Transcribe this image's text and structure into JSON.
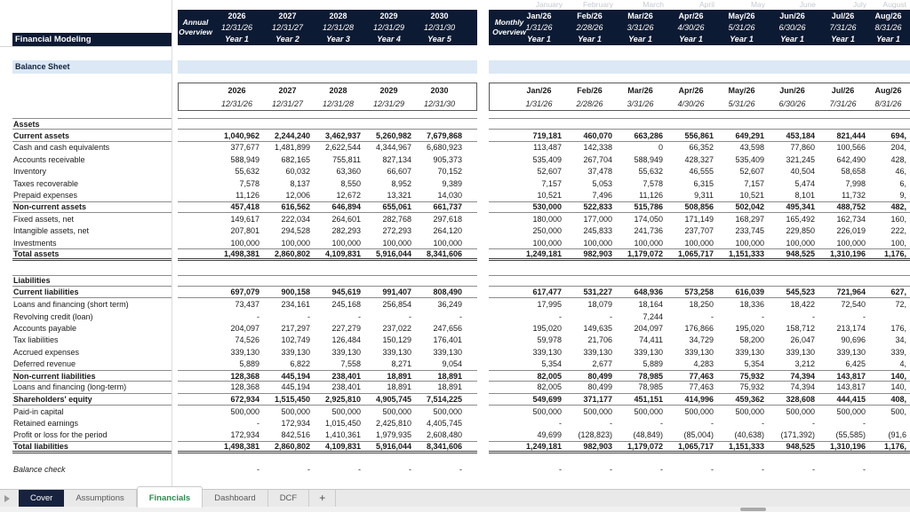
{
  "left": {
    "app_title": "Financial Modeling",
    "section_title": "Balance Sheet"
  },
  "colors": {
    "header_navy": "#0d1a33",
    "section_band_blue": "#dce8f5",
    "active_tab_green": "#2e8b4f",
    "cover_tab_navy": "#17223e"
  },
  "annual": {
    "band_label_line1": "Annual",
    "band_label_line2": "Overview",
    "years": [
      "2026",
      "2027",
      "2028",
      "2029",
      "2030"
    ],
    "dates": [
      "12/31/26",
      "12/31/27",
      "12/31/28",
      "12/31/29",
      "12/31/30"
    ],
    "year_labels": [
      "Year 1",
      "Year 2",
      "Year 3",
      "Year 4",
      "Year 5"
    ]
  },
  "monthly": {
    "band_label_line1": "Monthly",
    "band_label_line2": "Overview",
    "ghost_months": [
      "January",
      "February",
      "March",
      "April",
      "May",
      "June",
      "July",
      "August"
    ],
    "months": [
      "Jan/26",
      "Feb/26",
      "Mar/26",
      "Apr/26",
      "May/26",
      "Jun/26",
      "Jul/26",
      "Aug/26"
    ],
    "dates": [
      "1/31/26",
      "2/28/26",
      "3/31/26",
      "4/30/26",
      "5/31/26",
      "6/30/26",
      "7/31/26",
      "8/31/26"
    ],
    "year_labels": [
      "Year 1",
      "Year 1",
      "Year 1",
      "Year 1",
      "Year 1",
      "Year 1",
      "Year 1",
      "Year 1"
    ]
  },
  "rows": [
    {
      "label": "Assets",
      "b": true,
      "bt": true,
      "bb": "thin",
      "a": [
        "",
        "",
        "",
        "",
        ""
      ],
      "m": [
        "",
        "",
        "",
        "",
        "",
        "",
        "",
        ""
      ]
    },
    {
      "label": "Current assets",
      "b": true,
      "bb": "thin",
      "a": [
        "1,040,962",
        "2,244,240",
        "3,462,937",
        "5,260,982",
        "7,679,868"
      ],
      "m": [
        "719,181",
        "460,070",
        "663,286",
        "556,861",
        "649,291",
        "453,184",
        "821,444",
        "694,"
      ]
    },
    {
      "label": "Cash and cash equivalents",
      "a": [
        "377,677",
        "1,481,899",
        "2,622,544",
        "4,344,967",
        "6,680,923"
      ],
      "m": [
        "113,487",
        "142,338",
        "0",
        "66,352",
        "43,598",
        "77,860",
        "100,566",
        "204,"
      ]
    },
    {
      "label": "Accounts receivable",
      "a": [
        "588,949",
        "682,165",
        "755,811",
        "827,134",
        "905,373"
      ],
      "m": [
        "535,409",
        "267,704",
        "588,949",
        "428,327",
        "535,409",
        "321,245",
        "642,490",
        "428,"
      ]
    },
    {
      "label": "Inventory",
      "a": [
        "55,632",
        "60,032",
        "63,360",
        "66,607",
        "70,152"
      ],
      "m": [
        "52,607",
        "37,478",
        "55,632",
        "46,555",
        "52,607",
        "40,504",
        "58,658",
        "46,"
      ]
    },
    {
      "label": "Taxes recoverable",
      "a": [
        "7,578",
        "8,137",
        "8,550",
        "8,952",
        "9,389"
      ],
      "m": [
        "7,157",
        "5,053",
        "7,578",
        "6,315",
        "7,157",
        "5,474",
        "7,998",
        "6,"
      ]
    },
    {
      "label": "Prepaid expenses",
      "a": [
        "11,126",
        "12,006",
        "12,672",
        "13,321",
        "14,030"
      ],
      "m": [
        "10,521",
        "7,496",
        "11,126",
        "9,311",
        "10,521",
        "8,101",
        "11,732",
        "9,"
      ]
    },
    {
      "label": "Non-current assets",
      "b": true,
      "bt": true,
      "bb": "thin",
      "a": [
        "457,418",
        "616,562",
        "646,894",
        "655,061",
        "661,737"
      ],
      "m": [
        "530,000",
        "522,833",
        "515,786",
        "508,856",
        "502,042",
        "495,341",
        "488,752",
        "482,"
      ]
    },
    {
      "label": "Fixed assets, net",
      "a": [
        "149,617",
        "222,034",
        "264,601",
        "282,768",
        "297,618"
      ],
      "m": [
        "180,000",
        "177,000",
        "174,050",
        "171,149",
        "168,297",
        "165,492",
        "162,734",
        "160,"
      ]
    },
    {
      "label": "Intangible assets, net",
      "a": [
        "207,801",
        "294,528",
        "282,293",
        "272,293",
        "264,120"
      ],
      "m": [
        "250,000",
        "245,833",
        "241,736",
        "237,707",
        "233,745",
        "229,850",
        "226,019",
        "222,"
      ]
    },
    {
      "label": "Investments",
      "a": [
        "100,000",
        "100,000",
        "100,000",
        "100,000",
        "100,000"
      ],
      "m": [
        "100,000",
        "100,000",
        "100,000",
        "100,000",
        "100,000",
        "100,000",
        "100,000",
        "100,"
      ]
    },
    {
      "label": "Total assets",
      "b": true,
      "bt": true,
      "bb": "thick",
      "a": [
        "1,498,381",
        "2,860,802",
        "4,109,831",
        "5,916,044",
        "8,341,606"
      ],
      "m": [
        "1,249,181",
        "982,903",
        "1,179,072",
        "1,065,717",
        "1,151,333",
        "948,525",
        "1,310,196",
        "1,176,"
      ]
    },
    {
      "spacer": true,
      "h": 16
    },
    {
      "label": "Liabilities",
      "b": true,
      "bt": true,
      "bb": "thin",
      "a": [
        "",
        "",
        "",
        "",
        ""
      ],
      "m": [
        "",
        "",
        "",
        "",
        "",
        "",
        "",
        ""
      ]
    },
    {
      "label": "Current liabilities",
      "b": true,
      "bb": "thin",
      "a": [
        "697,079",
        "900,158",
        "945,619",
        "991,407",
        "808,490"
      ],
      "m": [
        "617,477",
        "531,227",
        "648,936",
        "573,258",
        "616,039",
        "545,523",
        "721,964",
        "627,"
      ]
    },
    {
      "label": "Loans and financing (short term)",
      "a": [
        "73,437",
        "234,161",
        "245,168",
        "256,854",
        "36,249"
      ],
      "m": [
        "17,995",
        "18,079",
        "18,164",
        "18,250",
        "18,336",
        "18,422",
        "72,540",
        "72,"
      ]
    },
    {
      "label": "Revolving credit (loan)",
      "a": [
        "-",
        "-",
        "-",
        "-",
        "-"
      ],
      "m": [
        "-",
        "-",
        "7,244",
        "-",
        "-",
        "-",
        "-",
        ""
      ]
    },
    {
      "label": "Accounts payable",
      "a": [
        "204,097",
        "217,297",
        "227,279",
        "237,022",
        "247,656"
      ],
      "m": [
        "195,020",
        "149,635",
        "204,097",
        "176,866",
        "195,020",
        "158,712",
        "213,174",
        "176,"
      ]
    },
    {
      "label": "Tax liabilities",
      "a": [
        "74,526",
        "102,749",
        "126,484",
        "150,129",
        "176,401"
      ],
      "m": [
        "59,978",
        "21,706",
        "74,411",
        "34,729",
        "58,200",
        "26,047",
        "90,696",
        "34,"
      ]
    },
    {
      "label": "Accrued expenses",
      "a": [
        "339,130",
        "339,130",
        "339,130",
        "339,130",
        "339,130"
      ],
      "m": [
        "339,130",
        "339,130",
        "339,130",
        "339,130",
        "339,130",
        "339,130",
        "339,130",
        "339,"
      ]
    },
    {
      "label": "Deferred revenue",
      "a": [
        "5,889",
        "6,822",
        "7,558",
        "8,271",
        "9,054"
      ],
      "m": [
        "5,354",
        "2,677",
        "5,889",
        "4,283",
        "5,354",
        "3,212",
        "6,425",
        "4,"
      ]
    },
    {
      "label": "Non-current liabilities",
      "b": true,
      "bt": true,
      "bb": "thin",
      "a": [
        "128,368",
        "445,194",
        "238,401",
        "18,891",
        "18,891"
      ],
      "m": [
        "82,005",
        "80,499",
        "78,985",
        "77,463",
        "75,932",
        "74,394",
        "143,817",
        "140,"
      ]
    },
    {
      "label": "Loans and financing (long-term)",
      "bb": "thin",
      "a": [
        "128,368",
        "445,194",
        "238,401",
        "18,891",
        "18,891"
      ],
      "m": [
        "82,005",
        "80,499",
        "78,985",
        "77,463",
        "75,932",
        "74,394",
        "143,817",
        "140,"
      ]
    },
    {
      "label": "Shareholders' equity",
      "b": true,
      "bb": "thin",
      "a": [
        "672,934",
        "1,515,450",
        "2,925,810",
        "4,905,745",
        "7,514,225"
      ],
      "m": [
        "549,699",
        "371,177",
        "451,151",
        "414,996",
        "459,362",
        "328,608",
        "444,415",
        "408,"
      ]
    },
    {
      "label": "Paid-in capital",
      "a": [
        "500,000",
        "500,000",
        "500,000",
        "500,000",
        "500,000"
      ],
      "m": [
        "500,000",
        "500,000",
        "500,000",
        "500,000",
        "500,000",
        "500,000",
        "500,000",
        "500,"
      ]
    },
    {
      "label": "Retained earnings",
      "a": [
        "-",
        "172,934",
        "1,015,450",
        "2,425,810",
        "4,405,745"
      ],
      "m": [
        "-",
        "-",
        "-",
        "-",
        "-",
        "-",
        "-",
        ""
      ]
    },
    {
      "label": "Profit or loss for the period",
      "a": [
        "172,934",
        "842,516",
        "1,410,361",
        "1,979,935",
        "2,608,480"
      ],
      "m": [
        "49,699",
        "(128,823)",
        "(48,849)",
        "(85,004)",
        "(40,638)",
        "(171,392)",
        "(55,585)",
        "(91,6"
      ]
    },
    {
      "label": "Total liabilities",
      "b": true,
      "bt": true,
      "bb": "thick",
      "a": [
        "1,498,381",
        "2,860,802",
        "4,109,831",
        "5,916,044",
        "8,341,606"
      ],
      "m": [
        "1,249,181",
        "982,903",
        "1,179,072",
        "1,065,717",
        "1,151,333",
        "948,525",
        "1,310,196",
        "1,176,"
      ]
    },
    {
      "spacer": true,
      "h": 12
    },
    {
      "label": "Balance check",
      "i": true,
      "a": [
        "-",
        "-",
        "-",
        "-",
        "-"
      ],
      "m": [
        "-",
        "-",
        "-",
        "-",
        "-",
        "-",
        "-",
        ""
      ]
    }
  ],
  "sheet_tabs": {
    "items": [
      {
        "label": "Cover"
      },
      {
        "label": "Assumptions"
      },
      {
        "label": "Financials"
      },
      {
        "label": "Dashboard"
      },
      {
        "label": "DCF"
      }
    ],
    "add_label": "+"
  }
}
